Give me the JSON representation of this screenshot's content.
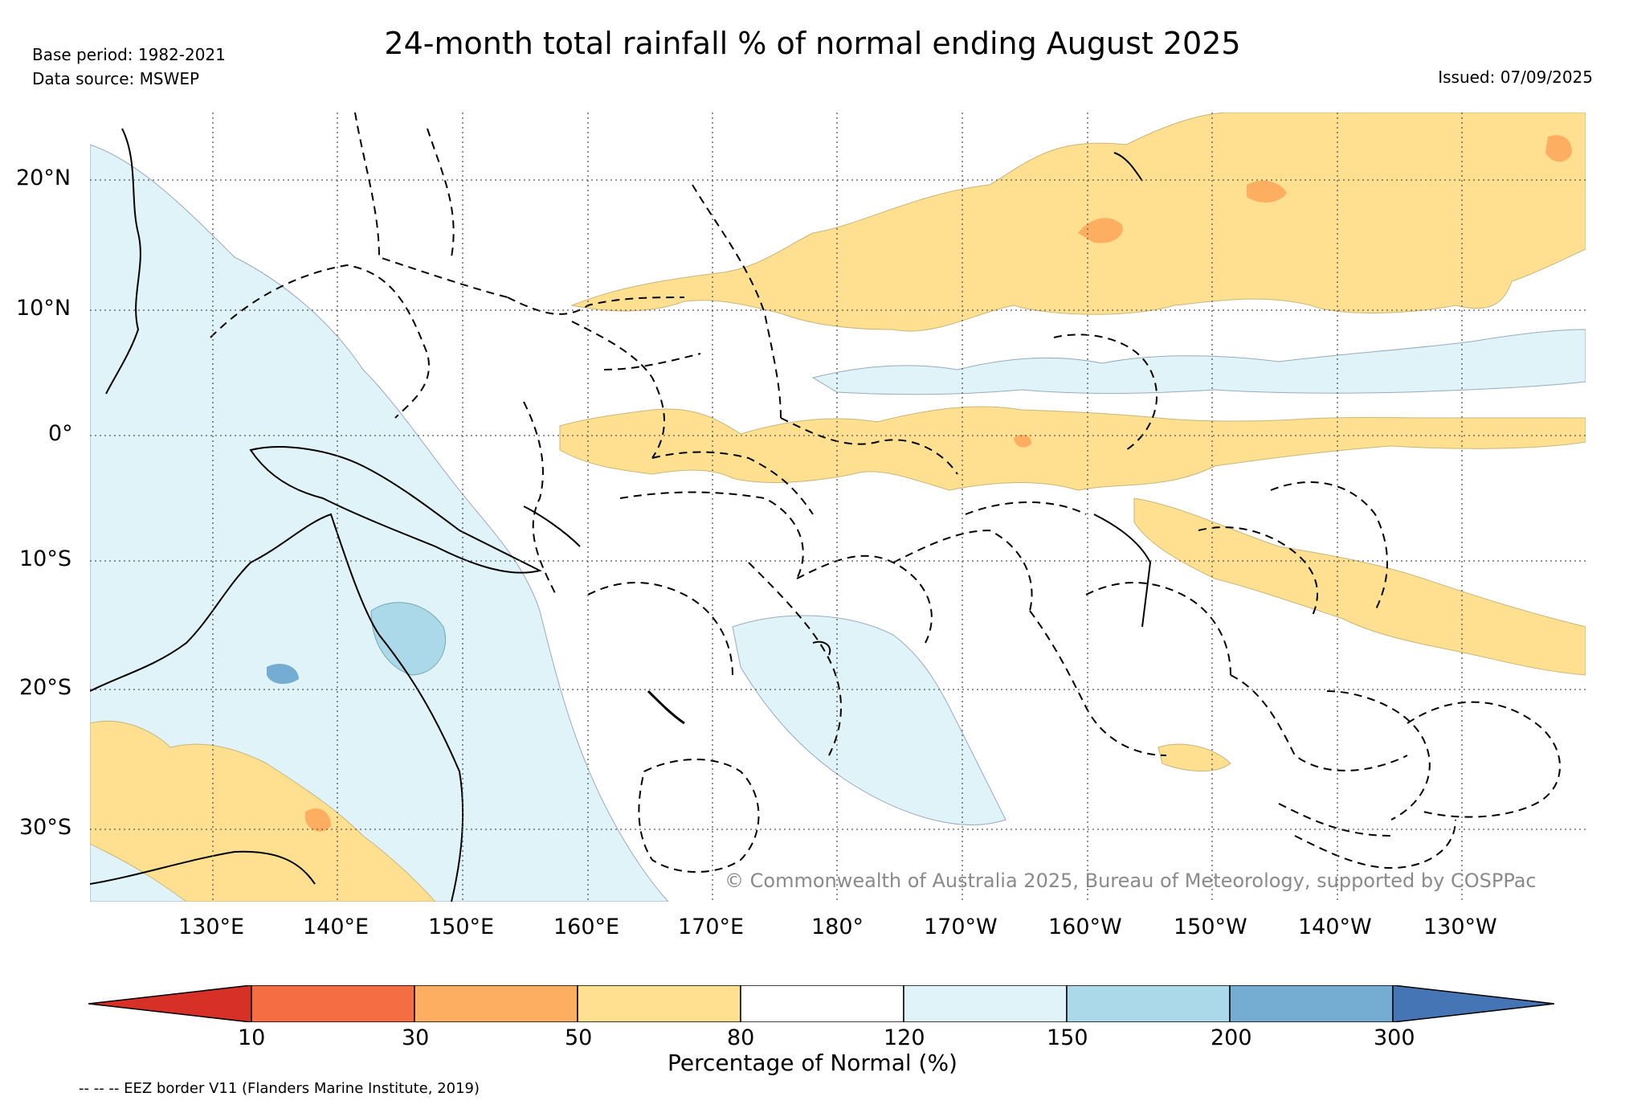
{
  "header": {
    "title": "24-month total rainfall % of normal ending August 2025",
    "base_period": "Base period: 1982-2021",
    "data_source": "Data source: MSWEP",
    "issued": "Issued: 07/09/2025"
  },
  "map": {
    "lat_labels": [
      "20°N",
      "10°N",
      "0°",
      "10°S",
      "20°S",
      "30°S"
    ],
    "lon_labels": [
      "130°E",
      "140°E",
      "150°E",
      "160°E",
      "170°E",
      "180°",
      "170°W",
      "160°W",
      "150°W",
      "140°W",
      "130°W"
    ],
    "copyright": "© Commonwealth of Australia 2025, Bureau of Meteorology, supported by COSPPac",
    "colors": {
      "land_outline": "#000000",
      "dry_50_80": "#fee090",
      "dry_30_50": "#fdae61",
      "wet_120_150": "#e0f3f8",
      "wet_150_200": "#abd9e9",
      "wet_200_300": "#74add1"
    }
  },
  "colorbar": {
    "ticks": [
      "10",
      "30",
      "50",
      "80",
      "120",
      "150",
      "200",
      "300"
    ],
    "colors": [
      "#d73027",
      "#f46d43",
      "#fdae61",
      "#fee090",
      "#ffffff",
      "#e0f3f8",
      "#abd9e9",
      "#74add1",
      "#4575b4"
    ],
    "caption": "Percentage of Normal (%)"
  },
  "footer": {
    "eez_note": "-- -- -- EEZ border V11 (Flanders Marine Institute, 2019)"
  }
}
